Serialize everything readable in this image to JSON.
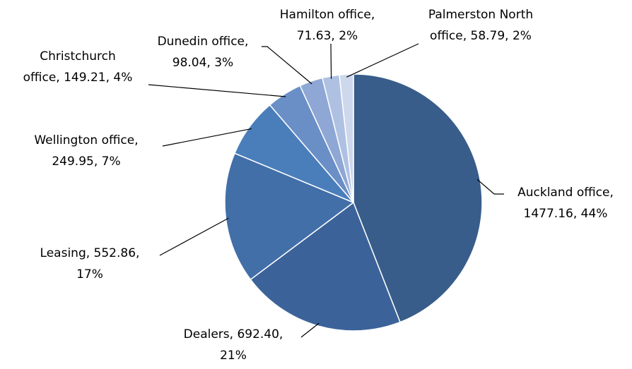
{
  "chart_data": {
    "type": "pie",
    "values": [
      1477.16,
      692.4,
      552.86,
      249.95,
      149.21,
      98.04,
      71.63,
      58.79
    ],
    "value_labels": [
      [
        "Auckland office,",
        "1477.16, 44%"
      ],
      [
        "Dealers, 692.40,",
        "21%"
      ],
      [
        "Leasing, 552.86,",
        "17%"
      ],
      [
        "Wellington office,",
        "249.95, 7%"
      ],
      [
        "Christchurch",
        "office, 149.21, 4%"
      ],
      [
        "Dunedin office,",
        "98.04, 3%"
      ],
      [
        "Hamilton office,",
        "71.63, 2%"
      ],
      [
        "Palmerston North",
        "office, 58.79, 2%"
      ]
    ],
    "colors": [
      "#385d8a",
      "#3c6399",
      "#426fa8",
      "#4a7ebb",
      "#6a8fc7",
      "#8ea7d4",
      "#afc1e2",
      "#cdd8ec"
    ]
  }
}
